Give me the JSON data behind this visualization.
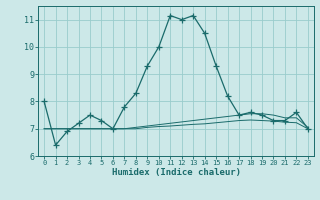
{
  "title": "",
  "xlabel": "Humidex (Indice chaleur)",
  "bg_color": "#cce8e8",
  "grid_color": "#99cccc",
  "line_color": "#1a6b6b",
  "x_main": [
    0,
    1,
    2,
    3,
    4,
    5,
    6,
    7,
    8,
    9,
    10,
    11,
    12,
    13,
    14,
    15,
    16,
    17,
    18,
    19,
    20,
    21,
    22,
    23
  ],
  "y_main": [
    8.0,
    6.4,
    6.9,
    7.2,
    7.5,
    7.3,
    7.0,
    7.8,
    8.3,
    9.3,
    10.0,
    11.15,
    11.0,
    11.15,
    10.5,
    9.3,
    8.2,
    7.5,
    7.6,
    7.5,
    7.3,
    7.3,
    7.6,
    7.0
  ],
  "y_flat1": [
    7.0,
    7.0,
    7.0,
    7.0,
    7.0,
    7.0,
    7.0,
    7.0,
    7.05,
    7.1,
    7.15,
    7.2,
    7.25,
    7.3,
    7.35,
    7.4,
    7.45,
    7.5,
    7.55,
    7.55,
    7.5,
    7.4,
    7.4,
    7.05
  ],
  "y_flat2": [
    7.0,
    7.0,
    7.0,
    7.0,
    7.0,
    7.0,
    7.0,
    7.0,
    7.0,
    7.05,
    7.08,
    7.1,
    7.13,
    7.16,
    7.18,
    7.22,
    7.26,
    7.3,
    7.32,
    7.3,
    7.28,
    7.24,
    7.22,
    7.0
  ],
  "xlim": [
    -0.5,
    23.5
  ],
  "ylim": [
    6.0,
    11.5
  ],
  "yticks": [
    6,
    7,
    8,
    9,
    10,
    11
  ],
  "xticks": [
    0,
    1,
    2,
    3,
    4,
    5,
    6,
    7,
    8,
    9,
    10,
    11,
    12,
    13,
    14,
    15,
    16,
    17,
    18,
    19,
    20,
    21,
    22,
    23
  ],
  "xlabel_fontsize": 6.5,
  "ytick_fontsize": 6.0,
  "xtick_fontsize": 5.0
}
